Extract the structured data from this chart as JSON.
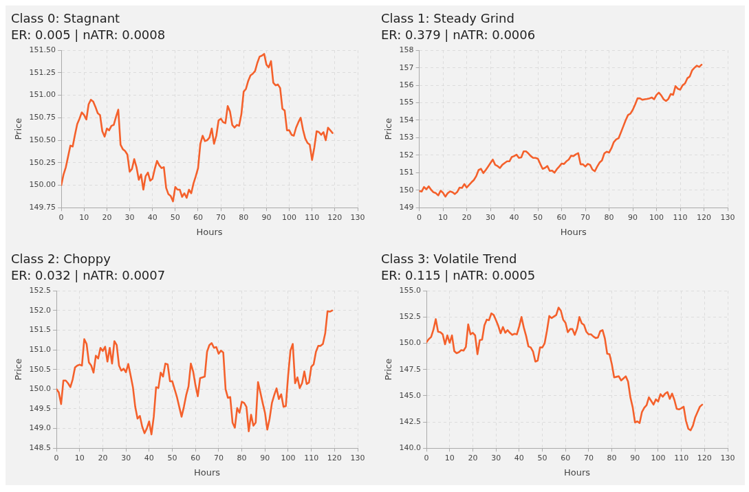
{
  "chart_data": [
    {
      "type": "line",
      "title": "Class 0: Stagnant",
      "subtitle": "ER: 0.005 | nATR: 0.0008",
      "xlabel": "Hours",
      "ylabel": "Price",
      "grid": true,
      "line_style": "solid",
      "marker": "none",
      "x": [
        0,
        1,
        2,
        3,
        4,
        5,
        6,
        7,
        8,
        9,
        10,
        11,
        12,
        13,
        14,
        15,
        16,
        17,
        18,
        19,
        20,
        21,
        22,
        23,
        24,
        25,
        26,
        27,
        28,
        29,
        30,
        31,
        32,
        33,
        34,
        35,
        36,
        37,
        38,
        39,
        40,
        41,
        42,
        43,
        44,
        45,
        46,
        47,
        48,
        49,
        50,
        51,
        52,
        53,
        54,
        55,
        56,
        57,
        58,
        59,
        60,
        61,
        62,
        63,
        64,
        65,
        66,
        67,
        68,
        69,
        70,
        71,
        72,
        73,
        74,
        75,
        76,
        77,
        78,
        79,
        80,
        81,
        82,
        83,
        84,
        85,
        86,
        87,
        88,
        89,
        90,
        91,
        92,
        93,
        94,
        95,
        96,
        97,
        98,
        99,
        100,
        101,
        102,
        103,
        104,
        105,
        106,
        107,
        108,
        109,
        110,
        111,
        112,
        113,
        114,
        115,
        116,
        117,
        118,
        119
      ],
      "series": [
        {
          "color": "#f4602b",
          "values": [
            150.0,
            150.12,
            150.2,
            150.32,
            150.44,
            150.43,
            150.56,
            150.68,
            150.74,
            150.81,
            150.78,
            150.73,
            150.9,
            150.95,
            150.93,
            150.87,
            150.8,
            150.78,
            150.6,
            150.54,
            150.63,
            150.61,
            150.66,
            150.67,
            150.76,
            150.84,
            150.45,
            150.4,
            150.38,
            150.34,
            150.15,
            150.18,
            150.29,
            150.2,
            150.06,
            150.12,
            149.95,
            150.1,
            150.14,
            150.05,
            150.07,
            150.18,
            150.27,
            150.22,
            150.19,
            150.2,
            149.97,
            149.9,
            149.88,
            149.82,
            149.98,
            149.95,
            149.95,
            149.87,
            149.91,
            149.86,
            149.95,
            149.91,
            150.02,
            150.1,
            150.19,
            150.46,
            150.55,
            150.49,
            150.5,
            150.53,
            150.63,
            150.46,
            150.55,
            150.72,
            150.74,
            150.7,
            150.69,
            150.88,
            150.82,
            150.67,
            150.64,
            150.67,
            150.66,
            150.79,
            151.04,
            151.07,
            151.16,
            151.22,
            151.24,
            151.27,
            151.36,
            151.43,
            151.44,
            151.46,
            151.34,
            151.31,
            151.38,
            151.14,
            151.11,
            151.12,
            151.08,
            150.85,
            150.83,
            150.61,
            150.61,
            150.56,
            150.55,
            150.64,
            150.7,
            150.75,
            150.62,
            150.52,
            150.47,
            150.45,
            150.28,
            150.42,
            150.6,
            150.59,
            150.56,
            150.59,
            150.5,
            150.64,
            150.61,
            150.58
          ]
        }
      ],
      "xlim": [
        0,
        130
      ],
      "xticks": [
        0,
        10,
        20,
        30,
        40,
        50,
        60,
        70,
        80,
        90,
        100,
        110,
        120,
        130
      ],
      "ylim": [
        149.75,
        151.5
      ],
      "yticks": [
        {
          "value": 149.75,
          "label": "149.75"
        },
        {
          "value": 150,
          "label": "150.00"
        },
        {
          "value": 150.25,
          "label": "150.25"
        },
        {
          "value": 150.5,
          "label": "150.50"
        },
        {
          "value": 150.75,
          "label": "150.75"
        },
        {
          "value": 151,
          "label": "151.00"
        },
        {
          "value": 151.25,
          "label": "151.25"
        },
        {
          "value": 151.5,
          "label": "151.50"
        }
      ]
    },
    {
      "type": "line",
      "title": "Class 1: Steady Grind",
      "subtitle": "ER: 0.379 | nATR: 0.0006",
      "xlabel": "Hours",
      "ylabel": "Price",
      "grid": true,
      "line_style": "solid",
      "marker": "none",
      "x": [
        0,
        1,
        2,
        3,
        4,
        5,
        6,
        7,
        8,
        9,
        10,
        11,
        12,
        13,
        14,
        15,
        16,
        17,
        18,
        19,
        20,
        21,
        22,
        23,
        24,
        25,
        26,
        27,
        28,
        29,
        30,
        31,
        32,
        33,
        34,
        35,
        36,
        37,
        38,
        39,
        40,
        41,
        42,
        43,
        44,
        45,
        46,
        47,
        48,
        49,
        50,
        51,
        52,
        53,
        54,
        55,
        56,
        57,
        58,
        59,
        60,
        61,
        62,
        63,
        64,
        65,
        66,
        67,
        68,
        69,
        70,
        71,
        72,
        73,
        74,
        75,
        76,
        77,
        78,
        79,
        80,
        81,
        82,
        83,
        84,
        85,
        86,
        87,
        88,
        89,
        90,
        91,
        92,
        93,
        94,
        95,
        96,
        97,
        98,
        99,
        100,
        101,
        102,
        103,
        104,
        105,
        106,
        107,
        108,
        109,
        110,
        111,
        112,
        113,
        114,
        115,
        116,
        117,
        118,
        119
      ],
      "series": [
        {
          "color": "#f4602b",
          "values": [
            149.95,
            149.92,
            150.18,
            150.05,
            150.22,
            150.02,
            149.88,
            149.83,
            149.7,
            149.97,
            149.85,
            149.63,
            149.83,
            149.93,
            149.88,
            149.78,
            149.9,
            150.15,
            150.13,
            150.35,
            150.15,
            150.3,
            150.45,
            150.58,
            150.8,
            151.15,
            151.22,
            150.98,
            151.15,
            151.35,
            151.55,
            151.75,
            151.45,
            151.38,
            151.27,
            151.45,
            151.55,
            151.65,
            151.65,
            151.9,
            151.95,
            152.03,
            151.85,
            151.88,
            152.22,
            152.22,
            152.1,
            151.95,
            151.85,
            151.85,
            151.8,
            151.5,
            151.22,
            151.28,
            151.38,
            151.1,
            151.12,
            151.0,
            151.2,
            151.35,
            151.52,
            151.5,
            151.65,
            151.75,
            151.97,
            151.95,
            152.05,
            152.12,
            151.48,
            151.48,
            151.35,
            151.5,
            151.45,
            151.18,
            151.08,
            151.35,
            151.58,
            151.7,
            152.1,
            152.2,
            152.15,
            152.4,
            152.75,
            152.9,
            152.97,
            153.3,
            153.65,
            154.0,
            154.3,
            154.38,
            154.6,
            154.9,
            155.25,
            155.25,
            155.17,
            155.2,
            155.22,
            155.25,
            155.3,
            155.2,
            155.45,
            155.58,
            155.42,
            155.2,
            155.1,
            155.22,
            155.5,
            155.45,
            155.95,
            155.8,
            155.75,
            156.0,
            156.1,
            156.4,
            156.5,
            156.85,
            157.0,
            157.12,
            157.05,
            157.18
          ]
        }
      ],
      "xlim": [
        0,
        130
      ],
      "xticks": [
        0,
        10,
        20,
        30,
        40,
        50,
        60,
        70,
        80,
        90,
        100,
        110,
        120,
        130
      ],
      "ylim": [
        149,
        158
      ],
      "yticks": [
        149,
        150,
        151,
        152,
        153,
        154,
        155,
        156,
        157,
        158
      ]
    },
    {
      "type": "line",
      "title": "Class 2: Choppy",
      "subtitle": "ER: 0.032 | nATR: 0.0007",
      "xlabel": "Hours",
      "ylabel": "Price",
      "grid": true,
      "line_style": "solid",
      "marker": "none",
      "x": [
        0,
        1,
        2,
        3,
        4,
        5,
        6,
        7,
        8,
        9,
        10,
        11,
        12,
        13,
        14,
        15,
        16,
        17,
        18,
        19,
        20,
        21,
        22,
        23,
        24,
        25,
        26,
        27,
        28,
        29,
        30,
        31,
        32,
        33,
        34,
        35,
        36,
        37,
        38,
        39,
        40,
        41,
        42,
        43,
        44,
        45,
        46,
        47,
        48,
        49,
        50,
        51,
        52,
        53,
        54,
        55,
        56,
        57,
        58,
        59,
        60,
        61,
        62,
        63,
        64,
        65,
        66,
        67,
        68,
        69,
        70,
        71,
        72,
        73,
        74,
        75,
        76,
        77,
        78,
        79,
        80,
        81,
        82,
        83,
        84,
        85,
        86,
        87,
        88,
        89,
        90,
        91,
        92,
        93,
        94,
        95,
        96,
        97,
        98,
        99,
        100,
        101,
        102,
        103,
        104,
        105,
        106,
        107,
        108,
        109,
        110,
        111,
        112,
        113,
        114,
        115,
        116,
        117,
        118,
        119
      ],
      "series": [
        {
          "color": "#f4602b",
          "values": [
            150.0,
            149.92,
            149.62,
            150.22,
            150.22,
            150.15,
            150.05,
            150.25,
            150.55,
            150.6,
            150.62,
            150.6,
            151.27,
            151.15,
            150.68,
            150.6,
            150.42,
            150.85,
            150.78,
            151.05,
            150.97,
            151.08,
            150.7,
            151.05,
            150.65,
            151.22,
            151.12,
            150.6,
            150.47,
            150.52,
            150.43,
            150.64,
            150.35,
            150.05,
            149.55,
            149.25,
            149.32,
            149.05,
            148.88,
            149.0,
            149.18,
            148.85,
            149.3,
            150.05,
            150.03,
            150.42,
            150.32,
            150.65,
            150.63,
            150.2,
            150.2,
            150.0,
            149.8,
            149.55,
            149.3,
            149.55,
            149.85,
            150.07,
            150.65,
            150.45,
            150.1,
            149.82,
            150.28,
            150.3,
            150.32,
            150.95,
            151.12,
            151.17,
            151.05,
            151.07,
            150.9,
            150.98,
            150.93,
            150.0,
            149.78,
            149.8,
            149.15,
            149.02,
            149.52,
            149.4,
            149.68,
            149.65,
            149.55,
            148.93,
            149.35,
            149.07,
            149.15,
            150.18,
            149.92,
            149.65,
            149.4,
            148.97,
            149.25,
            149.65,
            149.85,
            150.02,
            149.75,
            149.87,
            149.55,
            149.57,
            150.35,
            150.98,
            151.15,
            150.15,
            150.3,
            150.03,
            150.15,
            150.45,
            150.13,
            150.17,
            150.57,
            150.63,
            150.95,
            151.1,
            151.1,
            151.15,
            151.42,
            151.98,
            151.97,
            152.0
          ]
        }
      ],
      "xlim": [
        0,
        130
      ],
      "xticks": [
        0,
        10,
        20,
        30,
        40,
        50,
        60,
        70,
        80,
        90,
        100,
        110,
        120,
        130
      ],
      "ylim": [
        148.5,
        152.5
      ],
      "yticks": [
        148.5,
        {
          "value": 149,
          "label": "149.0"
        },
        149.5,
        {
          "value": 150,
          "label": "150.0"
        },
        150.5,
        {
          "value": 151,
          "label": "151.0"
        },
        151.5,
        {
          "value": 152,
          "label": "152.0"
        },
        152.5
      ]
    },
    {
      "type": "line",
      "title": "Class 3: Volatile Trend",
      "subtitle": "ER: 0.115 | nATR: 0.0005",
      "xlabel": "Hours",
      "ylabel": "Price",
      "grid": true,
      "line_style": "solid",
      "marker": "none",
      "x": [
        0,
        1,
        2,
        3,
        4,
        5,
        6,
        7,
        8,
        9,
        10,
        11,
        12,
        13,
        14,
        15,
        16,
        17,
        18,
        19,
        20,
        21,
        22,
        23,
        24,
        25,
        26,
        27,
        28,
        29,
        30,
        31,
        32,
        33,
        34,
        35,
        36,
        37,
        38,
        39,
        40,
        41,
        42,
        43,
        44,
        45,
        46,
        47,
        48,
        49,
        50,
        51,
        52,
        53,
        54,
        55,
        56,
        57,
        58,
        59,
        60,
        61,
        62,
        63,
        64,
        65,
        66,
        67,
        68,
        69,
        70,
        71,
        72,
        73,
        74,
        75,
        76,
        77,
        78,
        79,
        80,
        81,
        82,
        83,
        84,
        85,
        86,
        87,
        88,
        89,
        90,
        91,
        92,
        93,
        94,
        95,
        96,
        97,
        98,
        99,
        100,
        101,
        102,
        103,
        104,
        105,
        106,
        107,
        108,
        109,
        110,
        111,
        112,
        113,
        114,
        115,
        116,
        117,
        118,
        119
      ],
      "series": [
        {
          "color": "#f4602b",
          "values": [
            150.1,
            150.4,
            150.6,
            151.3,
            152.3,
            151.1,
            151.05,
            150.85,
            149.9,
            150.75,
            150.05,
            150.75,
            149.25,
            149.05,
            149.15,
            149.35,
            149.3,
            149.65,
            151.8,
            150.85,
            151.0,
            150.75,
            148.95,
            150.3,
            150.35,
            151.7,
            152.25,
            152.2,
            152.85,
            152.7,
            152.2,
            151.65,
            150.95,
            151.55,
            151.0,
            151.25,
            151.0,
            150.8,
            150.9,
            150.85,
            151.6,
            152.5,
            151.5,
            150.7,
            149.7,
            149.6,
            149.2,
            148.25,
            148.35,
            149.6,
            149.6,
            150.0,
            151.2,
            152.6,
            152.4,
            152.55,
            152.7,
            153.4,
            153.1,
            152.25,
            151.95,
            151.05,
            151.35,
            151.35,
            150.8,
            151.4,
            152.5,
            151.9,
            151.75,
            151.1,
            150.85,
            150.85,
            150.65,
            150.5,
            150.55,
            151.15,
            151.25,
            150.45,
            149.0,
            148.95,
            148.0,
            146.75,
            146.8,
            146.85,
            146.45,
            146.65,
            146.85,
            146.35,
            144.85,
            143.9,
            142.45,
            142.55,
            142.4,
            143.45,
            143.85,
            144.1,
            144.85,
            144.5,
            144.15,
            144.65,
            144.45,
            145.15,
            144.9,
            145.2,
            145.35,
            144.7,
            145.2,
            144.6,
            143.75,
            143.7,
            143.8,
            143.95,
            142.6,
            141.85,
            141.7,
            142.15,
            142.95,
            143.45,
            143.95,
            144.15
          ]
        }
      ],
      "xlim": [
        0,
        130
      ],
      "xticks": [
        0,
        10,
        20,
        30,
        40,
        50,
        60,
        70,
        80,
        90,
        100,
        110,
        120,
        130
      ],
      "ylim": [
        140,
        155
      ],
      "yticks": [
        {
          "value": 140,
          "label": "140.0"
        },
        142.5,
        {
          "value": 145,
          "label": "145.0"
        },
        147.5,
        {
          "value": 150,
          "label": "150.0"
        },
        152.5,
        {
          "value": 155,
          "label": "155.0"
        }
      ]
    }
  ]
}
